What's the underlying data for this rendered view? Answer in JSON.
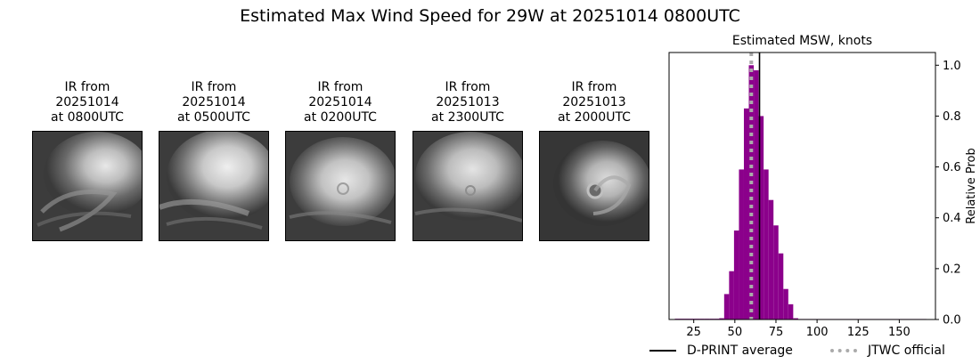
{
  "title": "Estimated Max Wind Speed for 29W at 20251014 0800UTC",
  "ir_panels": [
    {
      "line1": "IR from",
      "line2": "20251014",
      "line3": "at 0800UTC"
    },
    {
      "line1": "IR from",
      "line2": "20251014",
      "line3": "at 0500UTC"
    },
    {
      "line1": "IR from",
      "line2": "20251014",
      "line3": "at 0200UTC"
    },
    {
      "line1": "IR from",
      "line2": "20251013",
      "line3": "at 2300UTC"
    },
    {
      "line1": "IR from",
      "line2": "20251013",
      "line3": "at 2000UTC"
    }
  ],
  "chart_data": {
    "type": "bar",
    "title": "Estimated MSW, knots",
    "xlabel": "",
    "ylabel": "Relative Prob",
    "xlim": [
      10,
      172
    ],
    "ylim": [
      0,
      1.05
    ],
    "xticks": [
      25,
      50,
      75,
      100,
      125,
      150
    ],
    "yticks": [
      0.0,
      0.2,
      0.4,
      0.6,
      0.8,
      1.0
    ],
    "y_axis_side": "right",
    "bar_color": "#8b008b",
    "bin_width": 3,
    "bins": [
      {
        "x": 15,
        "value": 0.003
      },
      {
        "x": 18,
        "value": 0.003
      },
      {
        "x": 21,
        "value": 0.003
      },
      {
        "x": 24,
        "value": 0.003
      },
      {
        "x": 27,
        "value": 0.003
      },
      {
        "x": 30,
        "value": 0.003
      },
      {
        "x": 33,
        "value": 0.003
      },
      {
        "x": 36,
        "value": 0.003
      },
      {
        "x": 39,
        "value": 0.003
      },
      {
        "x": 42,
        "value": 0.005
      },
      {
        "x": 45,
        "value": 0.1
      },
      {
        "x": 48,
        "value": 0.19
      },
      {
        "x": 51,
        "value": 0.35
      },
      {
        "x": 54,
        "value": 0.59
      },
      {
        "x": 57,
        "value": 0.83
      },
      {
        "x": 60,
        "value": 1.0
      },
      {
        "x": 63,
        "value": 0.98
      },
      {
        "x": 66,
        "value": 0.8
      },
      {
        "x": 69,
        "value": 0.59
      },
      {
        "x": 72,
        "value": 0.47
      },
      {
        "x": 75,
        "value": 0.37
      },
      {
        "x": 78,
        "value": 0.26
      },
      {
        "x": 81,
        "value": 0.12
      },
      {
        "x": 84,
        "value": 0.06
      },
      {
        "x": 87,
        "value": 0.005
      },
      {
        "x": 90,
        "value": 0.002
      },
      {
        "x": 93,
        "value": 0.002
      },
      {
        "x": 96,
        "value": 0.002
      },
      {
        "x": 99,
        "value": 0.002
      },
      {
        "x": 102,
        "value": 0.002
      },
      {
        "x": 105,
        "value": 0.002
      },
      {
        "x": 108,
        "value": 0.002
      },
      {
        "x": 111,
        "value": 0.002
      },
      {
        "x": 114,
        "value": 0.002
      },
      {
        "x": 117,
        "value": 0.002
      },
      {
        "x": 120,
        "value": 0.002
      },
      {
        "x": 123,
        "value": 0.002
      },
      {
        "x": 126,
        "value": 0.002
      },
      {
        "x": 129,
        "value": 0.002
      },
      {
        "x": 132,
        "value": 0.002
      },
      {
        "x": 135,
        "value": 0.002
      },
      {
        "x": 138,
        "value": 0.002
      },
      {
        "x": 141,
        "value": 0.002
      },
      {
        "x": 144,
        "value": 0.002
      },
      {
        "x": 147,
        "value": 0.002
      },
      {
        "x": 150,
        "value": 0.002
      },
      {
        "x": 153,
        "value": 0.002
      },
      {
        "x": 156,
        "value": 0.002
      },
      {
        "x": 159,
        "value": 0.002
      },
      {
        "x": 162,
        "value": 0.002
      },
      {
        "x": 165,
        "value": 0.002
      }
    ],
    "reference_lines": [
      {
        "name": "D-PRINT average",
        "x": 65,
        "color": "#000000",
        "style": "solid"
      },
      {
        "name": "JTWC official",
        "x": 60,
        "color": "#aaaaaa",
        "style": "dotted"
      }
    ],
    "legend_placement": "bottom-right"
  }
}
